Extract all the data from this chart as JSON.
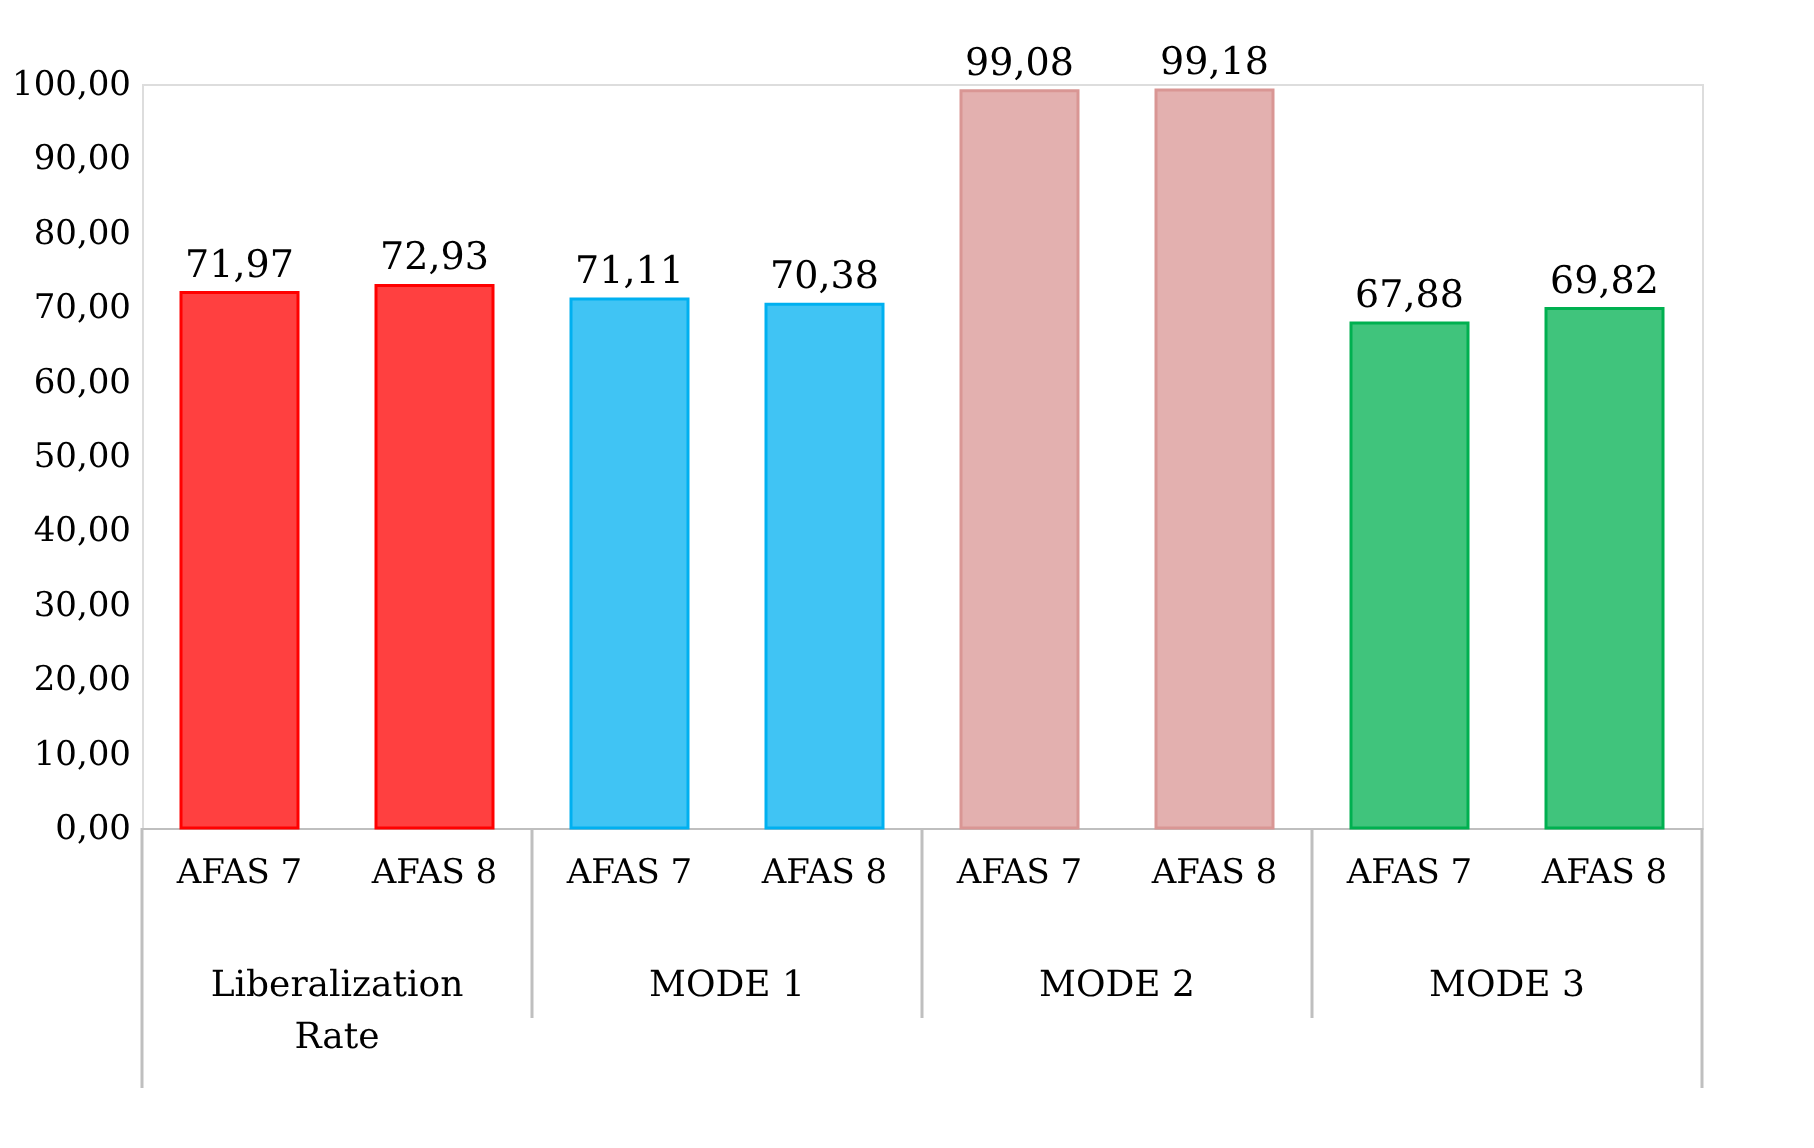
{
  "chart_data": {
    "type": "bar",
    "categories": [
      "AFAS 7",
      "AFAS 8",
      "AFAS 7",
      "AFAS 8",
      "AFAS 7",
      "AFAS 8",
      "AFAS 7",
      "AFAS 8"
    ],
    "values": [
      71.97,
      72.93,
      71.11,
      70.38,
      99.08,
      99.18,
      67.88,
      69.82
    ],
    "value_labels": [
      "71,97",
      "72,93",
      "71,11",
      "70,38",
      "99,08",
      "99,18",
      "67,88",
      "69,82"
    ],
    "colors": [
      "#ff0000",
      "#ff0000",
      "#00b0f0",
      "#00b0f0",
      "#d99694",
      "#d99694",
      "#00b050",
      "#00b050"
    ],
    "annotations": [
      "Liberalization Rate",
      "MODE 1",
      "MODE 2",
      "MODE 3"
    ],
    "ylim": [
      0,
      100
    ],
    "yticks": [
      {
        "value": 0,
        "label": "0,00"
      },
      {
        "value": 10,
        "label": "10,00"
      },
      {
        "value": 20,
        "label": "20,00"
      },
      {
        "value": 30,
        "label": "30,00"
      },
      {
        "value": 40,
        "label": "40,00"
      },
      {
        "value": 50,
        "label": "50,00"
      },
      {
        "value": 60,
        "label": "60,00"
      },
      {
        "value": 70,
        "label": "70,00"
      },
      {
        "value": 80,
        "label": "80,00"
      },
      {
        "value": 90,
        "label": "90,00"
      },
      {
        "value": 100,
        "label": "100,00"
      }
    ],
    "grid": false
  }
}
